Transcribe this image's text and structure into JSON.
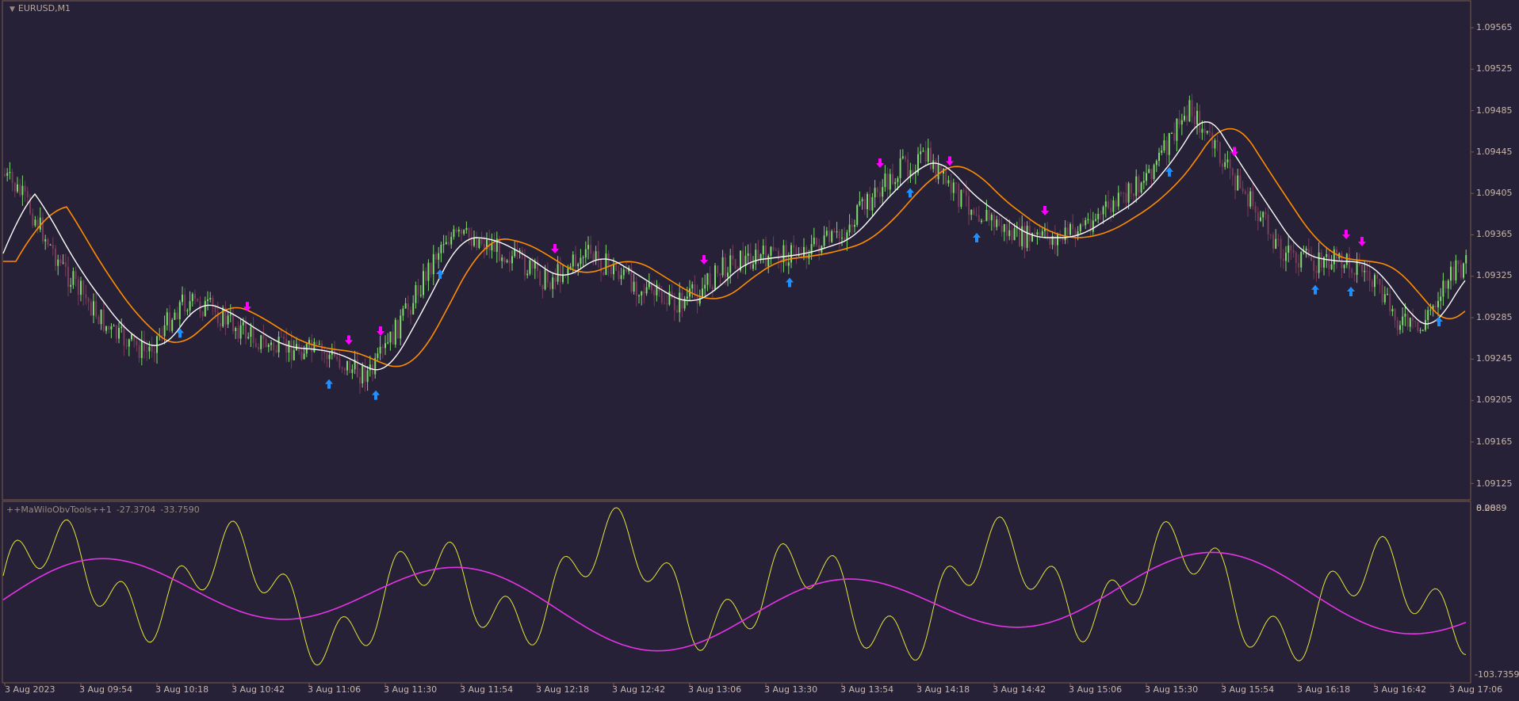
{
  "chart": {
    "symbol_title": "EURUSD,M1",
    "indicator_title": "++MaWiloObvTools++1",
    "indicator_value_1": "-27.3704",
    "indicator_value_2": "-33.7590",
    "sub_scale_top": "8.2889",
    "sub_scale_top_overlap": "0.00",
    "sub_scale_bottom": "-103.7359",
    "price_labels": [
      "1.09565",
      "1.09525",
      "1.09485",
      "1.09445",
      "1.09405",
      "1.09365",
      "1.09325",
      "1.09285",
      "1.09245",
      "1.09205",
      "1.09165",
      "1.09125"
    ],
    "time_labels": [
      "3 Aug 2023",
      "3 Aug 09:54",
      "3 Aug 10:18",
      "3 Aug 10:42",
      "3 Aug 11:06",
      "3 Aug 11:30",
      "3 Aug 11:54",
      "3 Aug 12:18",
      "3 Aug 12:42",
      "3 Aug 13:06",
      "3 Aug 13:30",
      "3 Aug 13:54",
      "3 Aug 14:18",
      "3 Aug 14:42",
      "3 Aug 15:06",
      "3 Aug 15:30",
      "3 Aug 15:54",
      "3 Aug 16:18",
      "3 Aug 16:42",
      "3 Aug 17:06"
    ],
    "colors": {
      "background": "#262136",
      "border": "#7a5a4a",
      "bull_candle": "#7ddc6a",
      "bear_candle": "#7a3c5a",
      "fast_ma": "#ffffff",
      "slow_ma": "#ff8c00",
      "up_arrow": "#1e90ff",
      "down_arrow": "#ff00ff",
      "osc_fast": "#e6e63c",
      "osc_slow": "#e633e6"
    }
  }
}
